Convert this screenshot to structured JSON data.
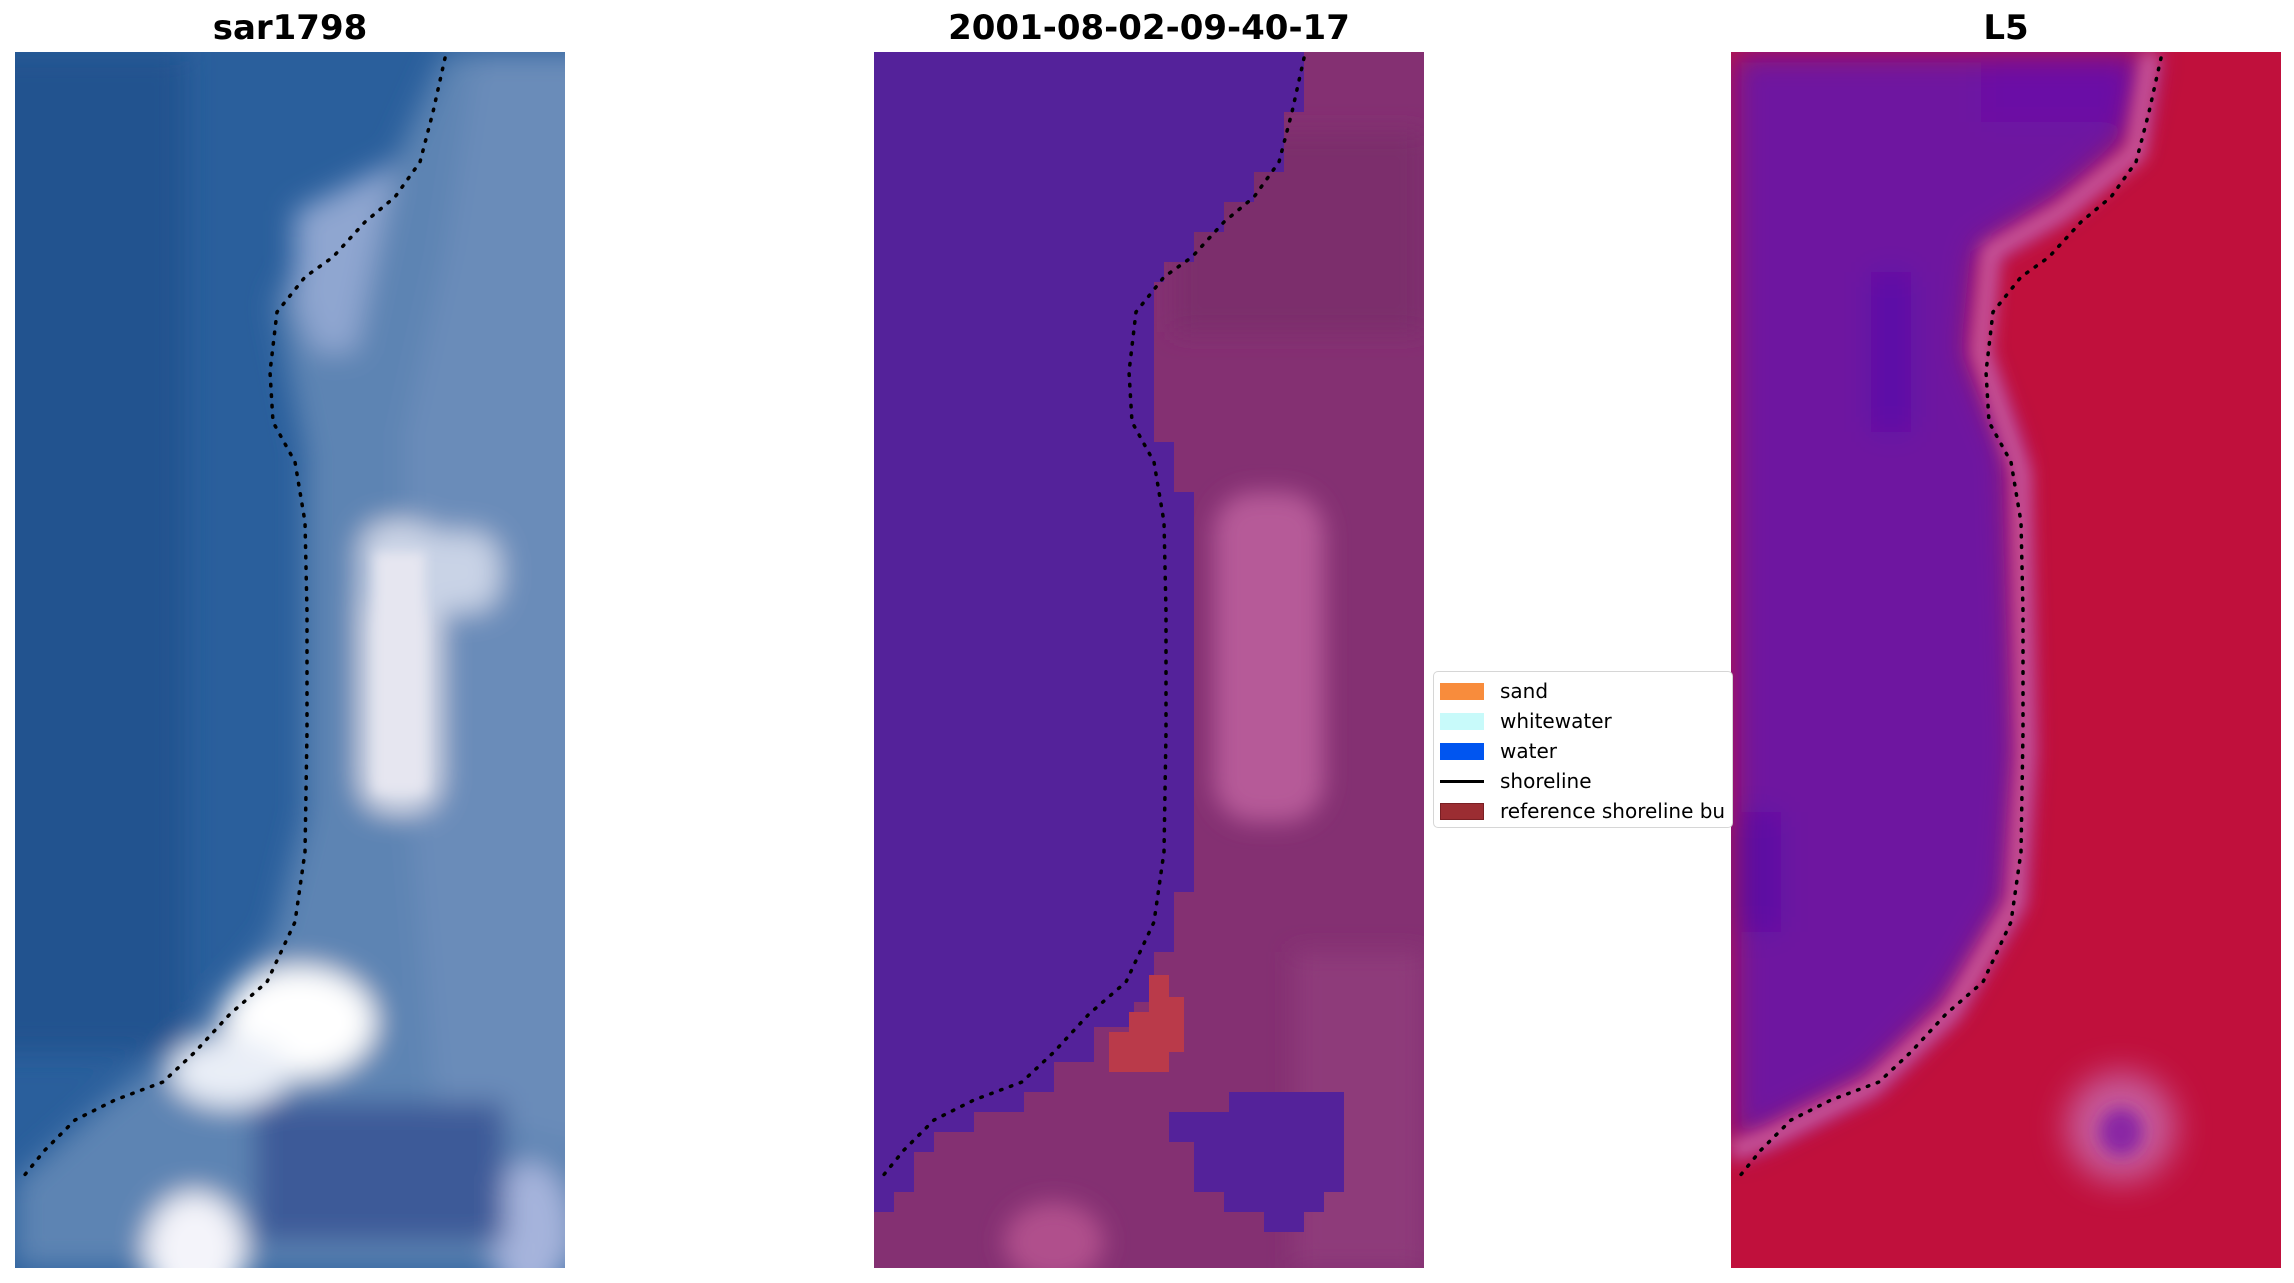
{
  "panels": [
    {
      "title": "sar1798",
      "icon": "satellite-rgb-image"
    },
    {
      "title": "2001-08-02-09-40-17",
      "icon": "classified-image"
    },
    {
      "title": "L5",
      "icon": "index-image"
    }
  ],
  "legend": {
    "items": [
      {
        "label": "sand",
        "color": "#f88c3c",
        "icon": "patch"
      },
      {
        "label": "whitewater",
        "color": "#c8fafa",
        "icon": "patch"
      },
      {
        "label": "water",
        "color": "#0055f0",
        "icon": "patch"
      },
      {
        "label": "shoreline",
        "color": "#000000",
        "icon": "line"
      },
      {
        "label": "reference shoreline bu",
        "color": "#9b2d32",
        "icon": "patch"
      }
    ]
  },
  "colors": {
    "water_rgb": "#2d68a0",
    "sand_rgb": "#5a82b0",
    "class_water": "#54229a",
    "class_land": "#843072",
    "index_low": "#6e14a0",
    "index_high": "#c0103c"
  }
}
